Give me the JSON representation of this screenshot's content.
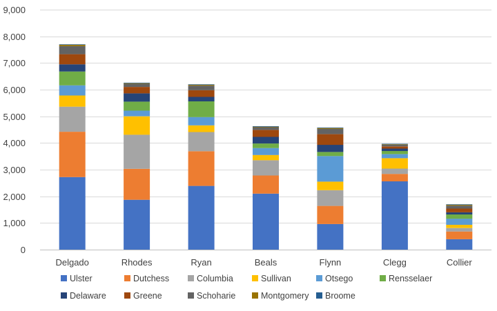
{
  "chart_data": {
    "type": "bar",
    "stacked": true,
    "title": "",
    "xlabel": "",
    "ylabel": "",
    "ylim": [
      0,
      9000
    ],
    "y_ticks": [
      0,
      1000,
      2000,
      3000,
      4000,
      5000,
      6000,
      7000,
      8000,
      9000
    ],
    "y_tick_labels": [
      "0",
      "1,000",
      "2,000",
      "3,000",
      "4,000",
      "5,000",
      "6,000",
      "7,000",
      "8,000",
      "9,000"
    ],
    "grid": true,
    "legend_position": "bottom",
    "categories": [
      "Delgado",
      "Rhodes",
      "Ryan",
      "Beals",
      "Flynn",
      "Clegg",
      "Collier"
    ],
    "series": [
      {
        "name": "Ulster",
        "color": "#4472C4",
        "values": [
          2720,
          1870,
          2390,
          2100,
          960,
          2560,
          390
        ]
      },
      {
        "name": "Dutchess",
        "color": "#ED7D31",
        "values": [
          1700,
          1160,
          1300,
          680,
          680,
          280,
          290
        ]
      },
      {
        "name": "Columbia",
        "color": "#A5A5A5",
        "values": [
          940,
          1280,
          720,
          570,
          590,
          200,
          130
        ]
      },
      {
        "name": "Sullivan",
        "color": "#FFC000",
        "values": [
          420,
          690,
          250,
          200,
          320,
          390,
          120
        ]
      },
      {
        "name": "Otsego",
        "color": "#5B9BD5",
        "values": [
          380,
          210,
          310,
          260,
          960,
          150,
          230
        ]
      },
      {
        "name": "Rensselaer",
        "color": "#70AD47",
        "values": [
          520,
          340,
          590,
          170,
          150,
          120,
          160
        ]
      },
      {
        "name": "Delaware",
        "color": "#264478",
        "values": [
          270,
          310,
          170,
          250,
          270,
          90,
          80
        ]
      },
      {
        "name": "Greene",
        "color": "#9E480E",
        "values": [
          380,
          240,
          250,
          260,
          400,
          80,
          140
        ]
      },
      {
        "name": "Schoharie",
        "color": "#636363",
        "values": [
          300,
          120,
          170,
          100,
          200,
          60,
          110
        ]
      },
      {
        "name": "Montgomery",
        "color": "#997300",
        "values": [
          50,
          20,
          30,
          20,
          30,
          20,
          30
        ]
      },
      {
        "name": "Broome",
        "color": "#255E91",
        "values": [
          20,
          20,
          20,
          20,
          20,
          20,
          20
        ]
      }
    ]
  }
}
